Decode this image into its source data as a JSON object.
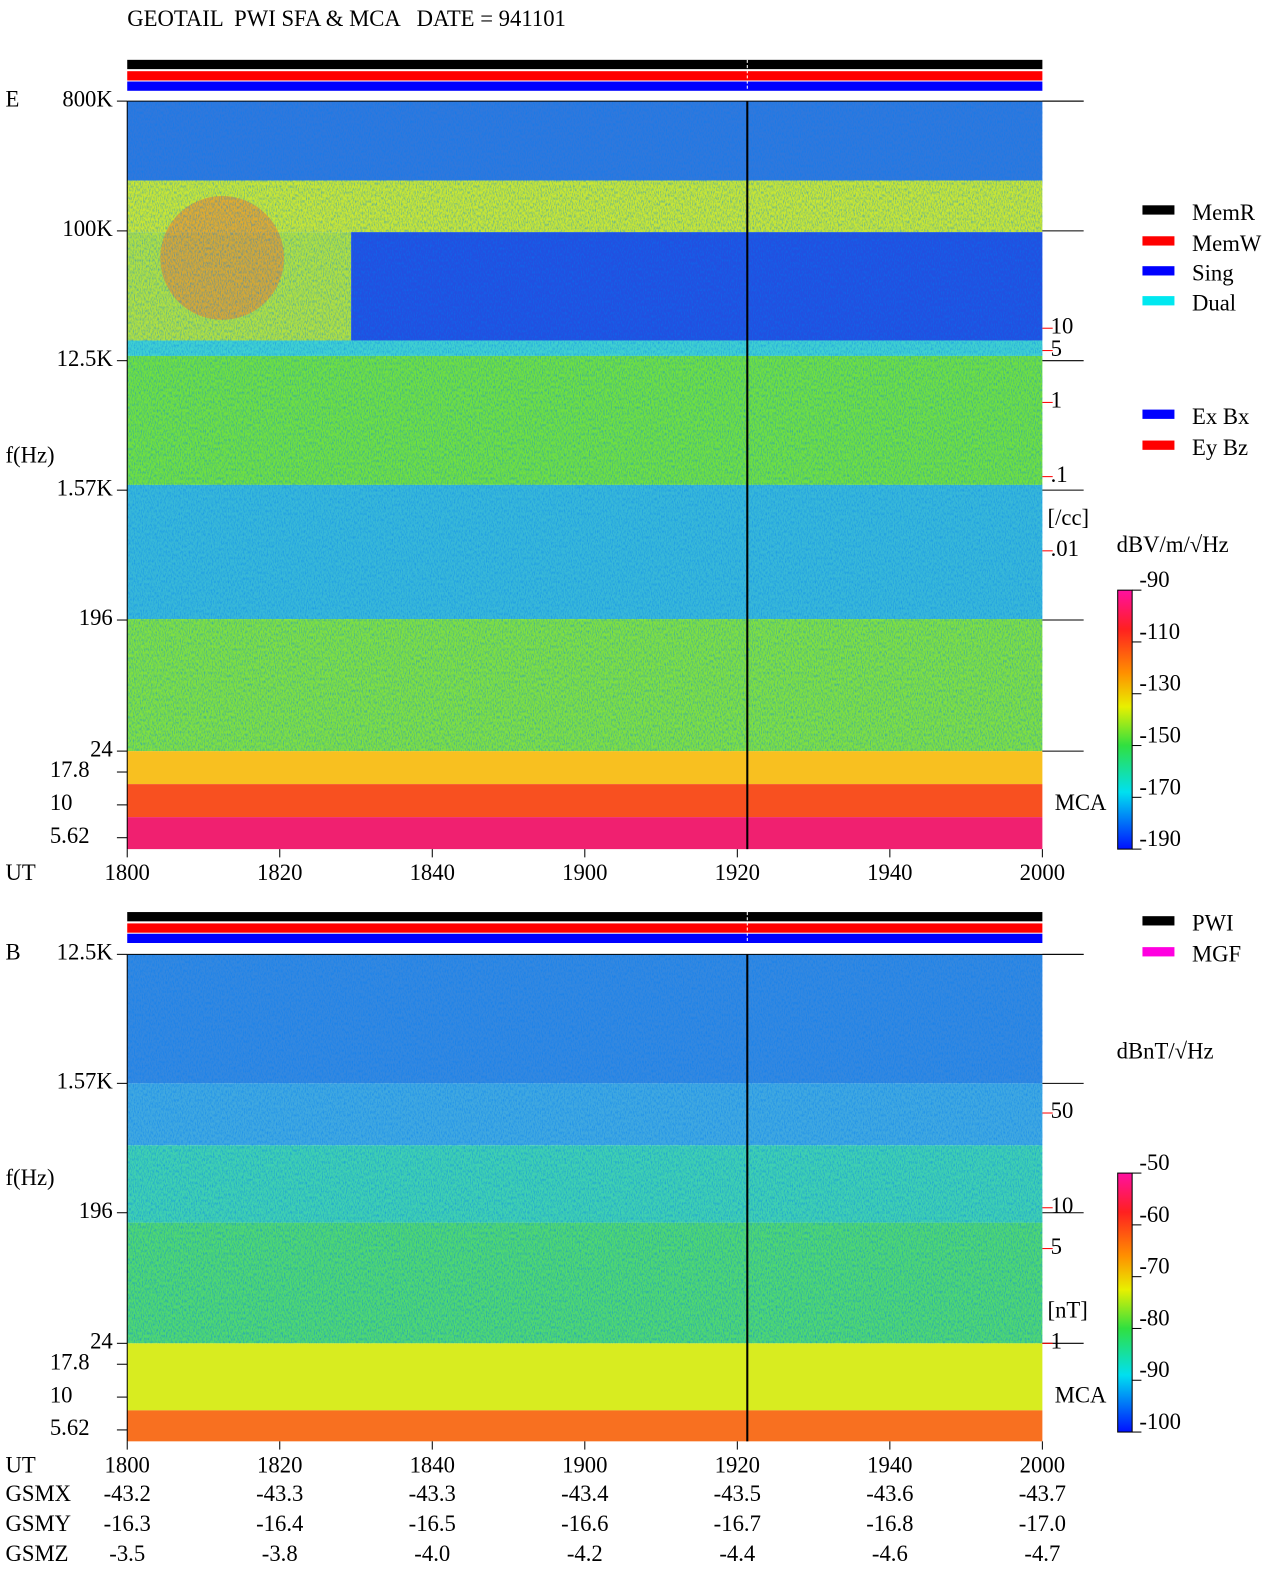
{
  "title": "GEOTAIL  PWI SFA & MCA   DATE = 941101",
  "chart_data": [
    {
      "type": "spectrogram",
      "panel_label": "E",
      "y_label": "f(Hz)",
      "x_label": "UT",
      "yscale": "log",
      "ylim": [
        24,
        800000
      ],
      "yticks": [
        {
          "value": 800000,
          "label": "800K"
        },
        {
          "value": 100000,
          "label": "100K"
        },
        {
          "value": 12500,
          "label": "12.5K"
        },
        {
          "value": 1570,
          "label": "1.57K"
        },
        196,
        24
      ],
      "mca_ylim": [
        4.6,
        25.7
      ],
      "mca_ticks": [
        17.8,
        10,
        5.62
      ],
      "mca_label": "MCA",
      "y2scale": "log",
      "y2lim": [
        2e-05,
        11500
      ],
      "y2ticks": [
        10,
        5,
        1,
        {
          "value": 0.1,
          "label": ".1"
        },
        {
          "value": 0.01,
          "label": ".01"
        }
      ],
      "y2_label": "[/cc]",
      "y2_color": "#ff0000",
      "xticks": [
        "1800",
        "1820",
        "1840",
        "1900",
        "1920",
        "1940",
        "2000"
      ],
      "legend": [
        {
          "name": "MemR",
          "color": "#000000"
        },
        {
          "name": "MemW",
          "color": "#ff0000"
        },
        {
          "name": "Sing",
          "color": "#0000ff"
        },
        {
          "name": "Dual",
          "color": "#00e8f0"
        }
      ],
      "legend2": [
        {
          "name": "Ex Bx",
          "color": "#0000ff"
        },
        {
          "name": "Ey Bz",
          "color": "#ff0000"
        }
      ],
      "colorbar": {
        "label": "dBV/m/√Hz",
        "lim": [
          -190,
          -90
        ],
        "ticks": [
          -90,
          -110,
          -130,
          -150,
          -170,
          -190
        ]
      }
    },
    {
      "type": "spectrogram",
      "panel_label": "B",
      "y_label": "f(Hz)",
      "x_label": "UT",
      "yscale": "log",
      "ylim": [
        24,
        12500
      ],
      "yticks": [
        {
          "value": 12500,
          "label": "12.5K"
        },
        {
          "value": 1570,
          "label": "1.57K"
        },
        196,
        24
      ],
      "mca_ylim": [
        4.6,
        25.7
      ],
      "mca_ticks": [
        17.8,
        10,
        5.62
      ],
      "mca_label": "MCA",
      "y2scale": "log",
      "y2lim": [
        1,
        740
      ],
      "y2ticks": [
        50,
        10,
        5,
        1
      ],
      "y2_label": "[nT]",
      "y2_color": "#ff0000",
      "xticks": [
        "1800",
        "1820",
        "1840",
        "1900",
        "1920",
        "1940",
        "2000"
      ],
      "legend": [
        {
          "name": "PWI",
          "color": "#000000"
        },
        {
          "name": "MGF",
          "color": "#ff00e0"
        }
      ],
      "colorbar": {
        "label": "dBnT/√Hz",
        "lim": [
          -100,
          -50
        ],
        "ticks": [
          -50,
          -60,
          -70,
          -80,
          -90,
          -100
        ]
      }
    }
  ],
  "ephemeris": {
    "rows": [
      {
        "name": "GSMX",
        "values": [
          "-43.2",
          "-43.3",
          "-43.3",
          "-43.4",
          "-43.5",
          "-43.6",
          "-43.7"
        ]
      },
      {
        "name": "GSMY",
        "values": [
          "-16.3",
          "-16.4",
          "-16.5",
          "-16.6",
          "-16.7",
          "-16.8",
          "-17.0"
        ]
      },
      {
        "name": "GSMZ",
        "values": [
          "-3.5",
          "-3.8",
          "-4.0",
          "-4.2",
          "-4.4",
          "-4.6",
          "-4.7"
        ]
      }
    ]
  }
}
